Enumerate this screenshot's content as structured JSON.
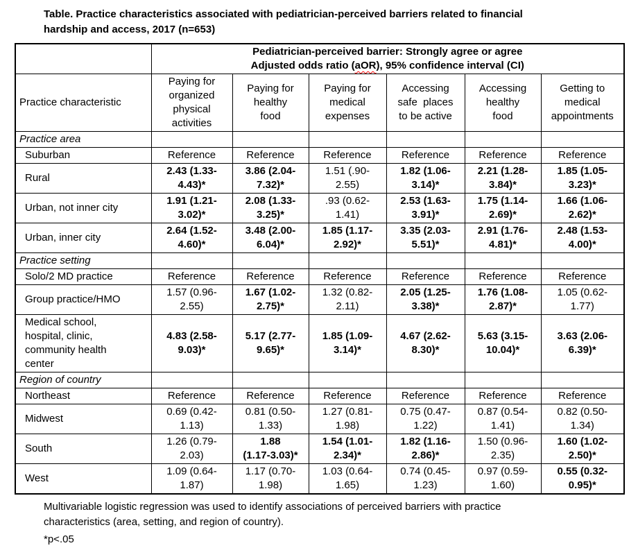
{
  "title": "Table. Practice characteristics associated with pediatrician-perceived barriers related to financial\nhardship and access, 2017 (n=653)",
  "colors": {
    "text": "#000000",
    "background": "#ffffff",
    "spellcheck_squiggle": "#ff0000"
  },
  "table": {
    "span_header": {
      "line1": "Pediatrician-perceived barrier: Strongly agree or agree",
      "line2_before": "Adjusted odds ratio (",
      "line2_term": "aOR",
      "line2_after": "), 95% confidence interval (CI)"
    },
    "corner_label": "Practice characteristic",
    "columns": [
      "Paying for\norganized\nphysical\nactivities",
      "Paying for\nhealthy\nfood",
      "Paying for\nmedical\nexpenses",
      "Accessing\nsafe  places\nto be active",
      "Accessing\nhealthy\nfood",
      "Getting to\nmedical\nappointments"
    ],
    "rows": [
      {
        "type": "section",
        "label": "Practice area"
      },
      {
        "type": "data",
        "label": "Suburban",
        "cells": [
          {
            "t": "Reference"
          },
          {
            "t": "Reference"
          },
          {
            "t": "Reference"
          },
          {
            "t": "Reference"
          },
          {
            "t": "Reference"
          },
          {
            "t": "Reference"
          }
        ]
      },
      {
        "type": "data",
        "label": "Rural",
        "cells": [
          {
            "t": "2.43 (1.33-\n4.43)*",
            "b": true
          },
          {
            "t": "3.86 (2.04-\n7.32)*",
            "b": true
          },
          {
            "t": "1.51 (.90-\n2.55)"
          },
          {
            "t": "1.82 (1.06-\n3.14)*",
            "b": true
          },
          {
            "t": "2.21 (1.28-\n3.84)*",
            "b": true
          },
          {
            "t": "1.85 (1.05-\n3.23)*",
            "b": true
          }
        ]
      },
      {
        "type": "data",
        "label": "Urban, not inner city",
        "cells": [
          {
            "t": "1.91 (1.21-\n3.02)*",
            "b": true
          },
          {
            "t": "2.08 (1.33-\n3.25)*",
            "b": true
          },
          {
            "t": ".93 (0.62-\n1.41)"
          },
          {
            "t": "2.53 (1.63-\n3.91)*",
            "b": true
          },
          {
            "t": "1.75 (1.14-\n2.69)*",
            "b": true
          },
          {
            "t": "1.66 (1.06-\n2.62)*",
            "b": true
          }
        ]
      },
      {
        "type": "data",
        "label": "Urban, inner city",
        "cells": [
          {
            "t": "2.64 (1.52-\n4.60)*",
            "b": true
          },
          {
            "t": "3.48 (2.00-\n6.04)*",
            "b": true
          },
          {
            "t": "1.85 (1.17-\n2.92)*",
            "b": true
          },
          {
            "t": "3.35 (2.03-\n5.51)*",
            "b": true
          },
          {
            "t": "2.91 (1.76-\n4.81)*",
            "b": true
          },
          {
            "t": "2.48 (1.53-\n4.00)*",
            "b": true
          }
        ]
      },
      {
        "type": "section",
        "label": "Practice setting"
      },
      {
        "type": "data",
        "label": "Solo/2 MD practice",
        "cells": [
          {
            "t": "Reference"
          },
          {
            "t": "Reference"
          },
          {
            "t": "Reference"
          },
          {
            "t": "Reference"
          },
          {
            "t": "Reference"
          },
          {
            "t": "Reference"
          }
        ]
      },
      {
        "type": "data",
        "label": "Group practice/HMO",
        "cells": [
          {
            "t": "1.57 (0.96-\n2.55)"
          },
          {
            "t": "1.67 (1.02-\n2.75)*",
            "b": true
          },
          {
            "t": "1.32 (0.82-\n2.11)"
          },
          {
            "t": "2.05 (1.25-\n3.38)*",
            "b": true
          },
          {
            "t": "1.76 (1.08-\n2.87)*",
            "b": true
          },
          {
            "t": "1.05 (0.62-\n1.77)"
          }
        ]
      },
      {
        "type": "data",
        "label": "Medical school,\nhospital, clinic,\ncommunity health\ncenter",
        "cells": [
          {
            "t": "4.83 (2.58-\n9.03)*",
            "b": true
          },
          {
            "t": "5.17 (2.77-\n9.65)*",
            "b": true
          },
          {
            "t": "1.85 (1.09-\n3.14)*",
            "b": true
          },
          {
            "t": "4.67 (2.62-\n8.30)*",
            "b": true
          },
          {
            "t": "5.63 (3.15-\n10.04)*",
            "b": true
          },
          {
            "t": "3.63 (2.06-\n6.39)*",
            "b": true
          }
        ]
      },
      {
        "type": "section",
        "label": "Region of country"
      },
      {
        "type": "data",
        "label": "Northeast",
        "cells": [
          {
            "t": "Reference"
          },
          {
            "t": "Reference"
          },
          {
            "t": "Reference"
          },
          {
            "t": "Reference"
          },
          {
            "t": "Reference"
          },
          {
            "t": "Reference"
          }
        ]
      },
      {
        "type": "data",
        "label": "Midwest",
        "cells": [
          {
            "t": "0.69 (0.42-\n1.13)"
          },
          {
            "t": "0.81 (0.50-\n1.33)"
          },
          {
            "t": "1.27 (0.81-\n1.98)"
          },
          {
            "t": "0.75 (0.47-\n1.22)"
          },
          {
            "t": "0.87 (0.54-\n1.41)"
          },
          {
            "t": "0.82 (0.50-\n1.34)"
          }
        ]
      },
      {
        "type": "data",
        "label": "South",
        "cells": [
          {
            "t": "1.26 (0.79-\n2.03)"
          },
          {
            "t": "1.88\n(1.17-3.03)*",
            "b": true
          },
          {
            "t": "1.54 (1.01-\n2.34)*",
            "b": true
          },
          {
            "t": "1.82 (1.16-\n2.86)*",
            "b": true
          },
          {
            "t": "1.50 (0.96-\n2.35)"
          },
          {
            "t": "1.60 (1.02-\n2.50)*",
            "b": true
          }
        ]
      },
      {
        "type": "data",
        "label": "West",
        "cells": [
          {
            "t": "1.09 (0.64-\n1.87)"
          },
          {
            "t": "1.17 (0.70-\n1.98)"
          },
          {
            "t": "1.03 (0.64-\n1.65)"
          },
          {
            "t": "0.74 (0.45-\n1.23)"
          },
          {
            "t": "0.97 (0.59-\n1.60)"
          },
          {
            "t": "0.55 (0.32-\n0.95)*",
            "b": true
          }
        ]
      }
    ]
  },
  "footnotes": [
    "Multivariable logistic regression was used to identify associations of perceived barriers with practice\ncharacteristics (area, setting, and region of country).",
    "*p<.05"
  ]
}
